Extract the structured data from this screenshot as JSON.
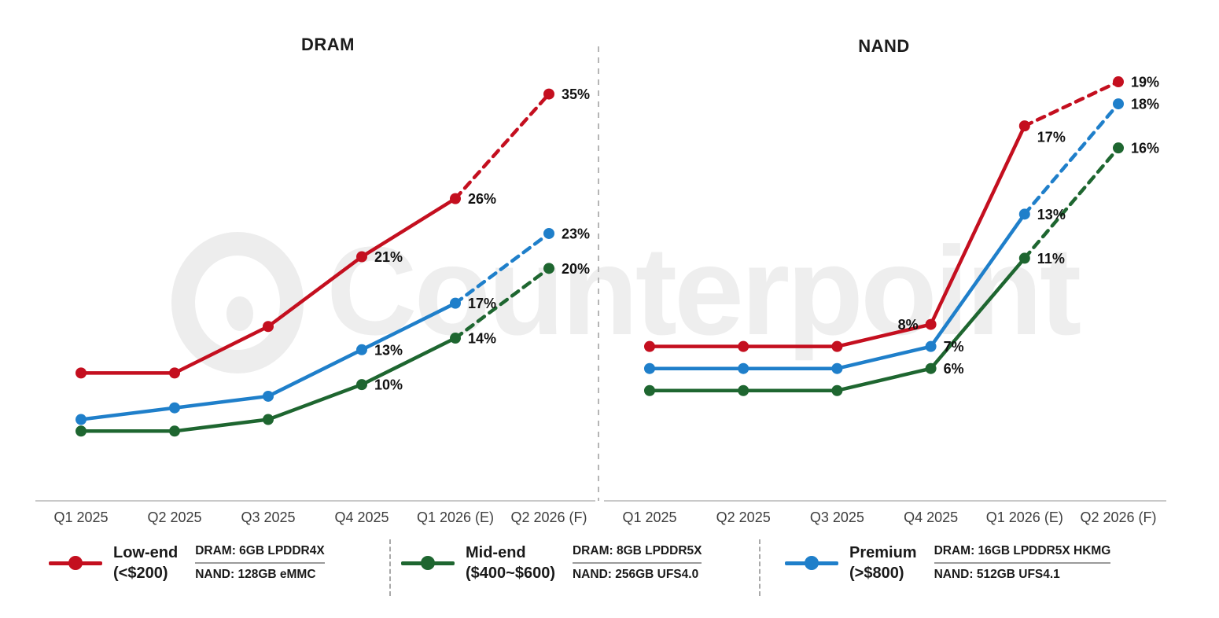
{
  "watermark": {
    "text": "Counterpoint"
  },
  "colors": {
    "low_end": "#c40f1f",
    "mid_end": "#1e6630",
    "premium": "#1f7fca",
    "axis_line": "#c9c9c9",
    "separator": "#b5b5b5",
    "tick_text": "#3d3d3d",
    "label_text": "#111111"
  },
  "chart_data": [
    {
      "type": "line",
      "title": "DRAM",
      "categories": [
        "Q1 2025",
        "Q2 2025",
        "Q3 2025",
        "Q4 2025",
        "Q1 2026 (E)",
        "Q2 2026 (F)"
      ],
      "ylim": [
        0,
        37
      ],
      "grid": false,
      "value_suffix": "%",
      "labels_shown_from_index": 3,
      "forecast_dashed_from_index": 4,
      "series": [
        {
          "name": "Low-end (<$200)",
          "color": "#c40f1f",
          "values": [
            11,
            11,
            15,
            21,
            26,
            35
          ]
        },
        {
          "name": "Mid-end ($400~$600)",
          "color": "#1e6630",
          "values": [
            6,
            6,
            7,
            10,
            14,
            20
          ]
        },
        {
          "name": "Premium (>$800)",
          "color": "#1f7fca",
          "values": [
            7,
            8,
            9,
            13,
            17,
            23
          ]
        }
      ]
    },
    {
      "type": "line",
      "title": "NAND",
      "categories": [
        "Q1 2025",
        "Q2 2025",
        "Q3 2025",
        "Q4 2025",
        "Q1 2026 (E)",
        "Q2 2026 (F)"
      ],
      "ylim": [
        0,
        19.5
      ],
      "grid": false,
      "value_suffix": "%",
      "labels_shown_from_index": 3,
      "forecast_dashed_from_index": 4,
      "series": [
        {
          "name": "Low-end (<$200)",
          "color": "#c40f1f",
          "values": [
            7,
            7,
            7,
            8,
            17,
            19
          ]
        },
        {
          "name": "Mid-end ($400~$600)",
          "color": "#1e6630",
          "values": [
            5,
            5,
            5,
            6,
            11,
            16
          ]
        },
        {
          "name": "Premium (>$800)",
          "color": "#1f7fca",
          "values": [
            6,
            6,
            6,
            7,
            13,
            18
          ]
        }
      ]
    }
  ],
  "legend": {
    "items": [
      {
        "name": "Low-end",
        "range": "(<$200)",
        "color": "#c40f1f",
        "dram_spec": "DRAM: 6GB LPDDR4X",
        "nand_spec": "NAND: 128GB eMMC"
      },
      {
        "name": "Mid-end",
        "range": "($400~$600)",
        "color": "#1e6630",
        "dram_spec": "DRAM: 8GB LPDDR5X",
        "nand_spec": "NAND: 256GB UFS4.0"
      },
      {
        "name": "Premium",
        "range": "(>$800)",
        "color": "#1f7fca",
        "dram_spec": "DRAM: 16GB LPDDR5X HKMG",
        "nand_spec": "NAND: 512GB UFS4.1"
      }
    ]
  }
}
